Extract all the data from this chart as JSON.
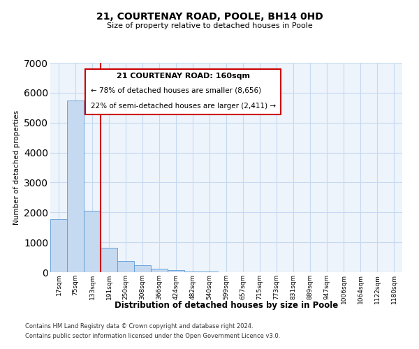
{
  "title": "21, COURTENAY ROAD, POOLE, BH14 0HD",
  "subtitle": "Size of property relative to detached houses in Poole",
  "xlabel": "Distribution of detached houses by size in Poole",
  "ylabel": "Number of detached properties",
  "bin_labels": [
    "17sqm",
    "75sqm",
    "133sqm",
    "191sqm",
    "250sqm",
    "308sqm",
    "366sqm",
    "424sqm",
    "482sqm",
    "540sqm",
    "599sqm",
    "657sqm",
    "715sqm",
    "773sqm",
    "831sqm",
    "889sqm",
    "947sqm",
    "1006sqm",
    "1064sqm",
    "1122sqm",
    "1180sqm"
  ],
  "bar_heights": [
    1780,
    5750,
    2060,
    820,
    370,
    235,
    115,
    60,
    35,
    30,
    10,
    5,
    5,
    0,
    0,
    3,
    0,
    0,
    0,
    0,
    0
  ],
  "bar_color": "#c5d9f0",
  "bar_edge_color": "#5b9bd5",
  "grid_color": "#c5d9f0",
  "bg_color": "#eef4fb",
  "annotation_box_color": "#ffffff",
  "annotation_box_edge": "#cc0000",
  "red_line_color": "#cc0000",
  "annotation_line1": "21 COURTENAY ROAD: 160sqm",
  "annotation_line2": "← 78% of detached houses are smaller (8,656)",
  "annotation_line3": "22% of semi-detached houses are larger (2,411) →",
  "footer_line1": "Contains HM Land Registry data © Crown copyright and database right 2024.",
  "footer_line2": "Contains public sector information licensed under the Open Government Licence v3.0.",
  "ylim": [
    0,
    7000
  ],
  "yticks": [
    0,
    1000,
    2000,
    3000,
    4000,
    5000,
    6000,
    7000
  ]
}
